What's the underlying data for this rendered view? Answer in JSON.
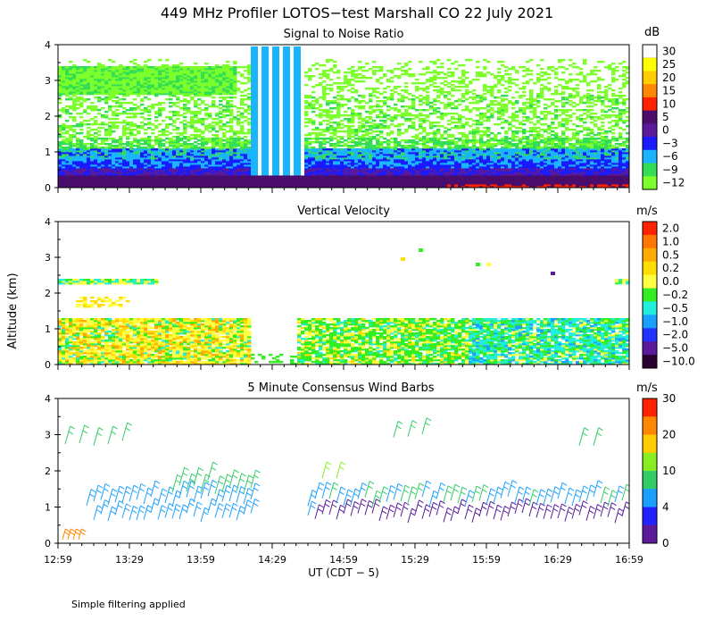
{
  "chart_data": [
    {
      "type": "heatmap",
      "title": "Signal to Noise Ratio",
      "ylabel": "Altitude (km)",
      "ylim": [
        0,
        4
      ],
      "yticks": [
        "0",
        "1",
        "2",
        "3",
        "4"
      ],
      "colorbar": {
        "unit": "dB",
        "labels": [
          "30",
          "25",
          "20",
          "15",
          "10",
          "5",
          "0",
          "−3",
          "−6",
          "−9",
          "−12"
        ],
        "colors": [
          "#ffffff",
          "#ffff00",
          "#ffcc00",
          "#ff8800",
          "#ff2200",
          "#4a0d6b",
          "#5a1a9a",
          "#1a1aff",
          "#1ab5ff",
          "#33dd55",
          "#7cff2a"
        ]
      }
    },
    {
      "type": "heatmap",
      "title": "Vertical Velocity",
      "ylabel": "Altitude (km)",
      "ylim": [
        0,
        4
      ],
      "yticks": [
        "0",
        "1",
        "2",
        "3",
        "4"
      ],
      "colorbar": {
        "unit": "m/s",
        "labels": [
          "2.0",
          "1.0",
          "0.5",
          "0.2",
          "0.0",
          "−0.2",
          "−0.5",
          "−1.0",
          "−2.0",
          "−5.0",
          "−10.0"
        ],
        "colors": [
          "#ff2200",
          "#ff7700",
          "#ffaa00",
          "#ffdd00",
          "#ffff44",
          "#33ee22",
          "#22eedd",
          "#1aa0ff",
          "#2233ff",
          "#5a1a9a",
          "#2a0030"
        ]
      }
    },
    {
      "type": "scatter",
      "title": "5 Minute Consensus Wind Barbs",
      "ylabel": "Altitude (km)",
      "ylim": [
        0,
        4
      ],
      "yticks": [
        "0",
        "1",
        "2",
        "3",
        "4"
      ],
      "colorbar": {
        "unit": "m/s",
        "labels": [
          "30",
          "20",
          "10",
          "4",
          "0"
        ],
        "colors": [
          "#ff2200",
          "#ff8800",
          "#ffcc00",
          "#88ee22",
          "#33cc66",
          "#1aa0ff",
          "#2222ff",
          "#5a1a9a"
        ]
      }
    }
  ],
  "figure": {
    "title": "449 MHz Profiler LOTOS−test Marshall CO 22 July 2021",
    "ylabel": "Altitude (km)",
    "xlabel": "UT  (CDT − 5)",
    "xticks": [
      "12:59",
      "13:29",
      "13:59",
      "14:29",
      "14:59",
      "15:29",
      "15:59",
      "16:29",
      "16:59"
    ],
    "footnote": "Simple filtering applied"
  }
}
